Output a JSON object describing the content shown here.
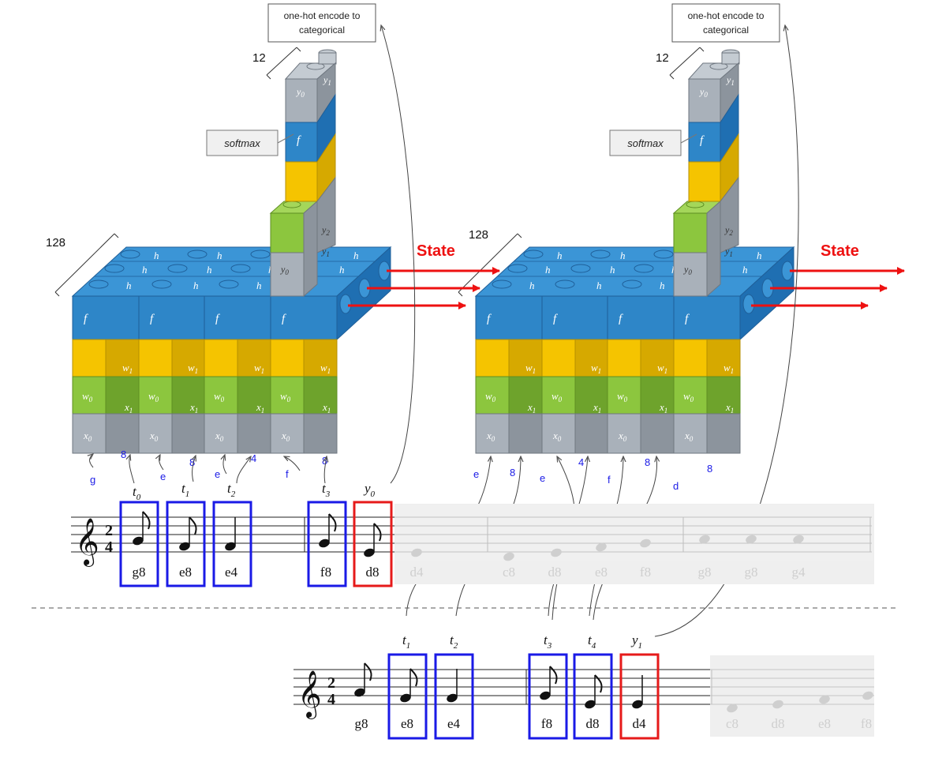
{
  "encode_label_line1": "one-hot encode to",
  "encode_label_line2": "categorical",
  "softmax_label": "softmax",
  "state_label": "State",
  "dim_output": "12",
  "dim_hidden": "128",
  "block_labels": {
    "f": "f",
    "w0": "w",
    "w1": "w",
    "x0": "x",
    "x1": "x",
    "y0": "y",
    "y1": "y",
    "y2": "y",
    "h0": "h",
    "h1": "h",
    "h2": "h",
    "sub0": "0",
    "sub1": "1",
    "sub2": "2"
  },
  "top_diagram": {
    "input_notes": [
      "g",
      "e",
      "e",
      "f"
    ],
    "input_durations": [
      "8",
      "8",
      "4",
      "8"
    ],
    "time_labels": [
      "t",
      "t",
      "t",
      "t"
    ],
    "time_subs": [
      "0",
      "1",
      "2",
      "3"
    ],
    "output_label": "y",
    "output_sub": "0"
  },
  "second_diagram": {
    "input_notes": [
      "e",
      "e",
      "f",
      "d"
    ],
    "input_durations": [
      "8",
      "4",
      "8",
      "8"
    ]
  },
  "time_signature": {
    "top": "2",
    "bottom": "4"
  },
  "top_staff": {
    "boxed_notes": [
      "g8",
      "e8",
      "e4",
      "f8"
    ],
    "predicted_note": "d8",
    "faded_notes": [
      "d4",
      "c8",
      "d8",
      "e8",
      "f8",
      "g8",
      "g8",
      "g4"
    ]
  },
  "bottom_staff": {
    "first_note": "g8",
    "boxed_notes": [
      "e8",
      "e4",
      "f8",
      "d8"
    ],
    "predicted_note": "d4",
    "faded_notes": [
      "c8",
      "d8",
      "e8",
      "f8"
    ],
    "time_labels": [
      "t",
      "t",
      "t",
      "t"
    ],
    "time_subs": [
      "1",
      "2",
      "3",
      "4"
    ],
    "output_label": "y",
    "output_sub": "1"
  },
  "colors": {
    "blue": "#2e86c8",
    "yellow": "#f5c400",
    "green": "#8cc63e",
    "gray": "#a9b1ba",
    "state_red": "#ee1111",
    "box_blue": "#1a1ae6",
    "box_red": "#e61a1a"
  }
}
